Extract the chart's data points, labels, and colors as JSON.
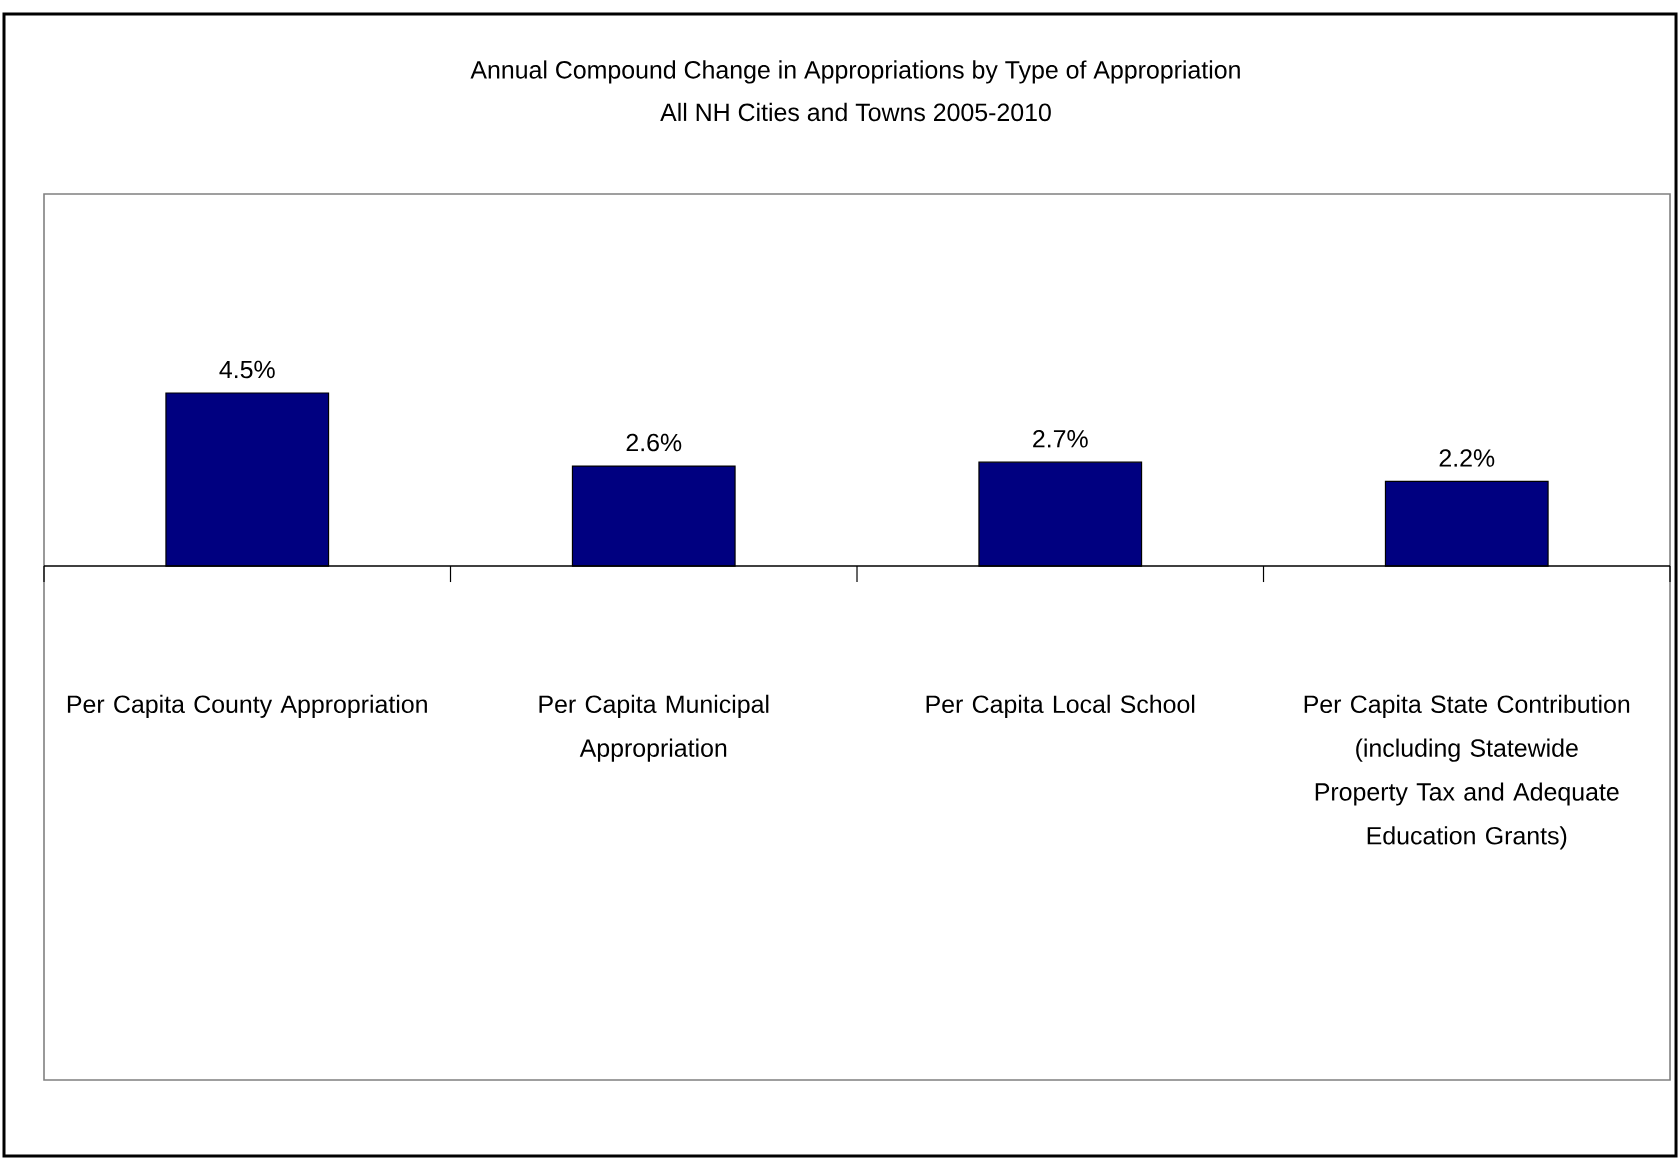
{
  "chart_data": {
    "type": "bar",
    "title": "Annual Compound Change in Appropriations by Type of Appropriation",
    "subtitle": "All NH Cities and Towns 2005-2010",
    "categories": [
      "Per Capita County Appropriation",
      "Per Capita Municipal Appropriation",
      "Per Capita Local School",
      "Per Capita State Contribution (including Statewide Property Tax and Adequate Education Grants)"
    ],
    "values": [
      4.5,
      2.6,
      2.7,
      2.2
    ],
    "value_labels": [
      "4.5%",
      "2.6%",
      "2.7%",
      "2.2%"
    ],
    "color": "#000080"
  }
}
